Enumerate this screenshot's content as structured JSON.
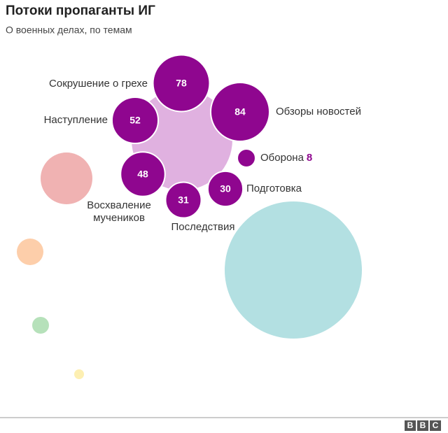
{
  "chart_data": {
    "type": "bubble",
    "title": "Потоки пропаганты ИГ",
    "subtitle": "О военных делах, по темам",
    "color": "#8f068f",
    "series": [
      {
        "name": "Сокрушение о грехе",
        "value": 78
      },
      {
        "name": "Обзоры новостей",
        "value": 84
      },
      {
        "name": "Наступление",
        "value": 52
      },
      {
        "name": "Оборона",
        "value": 8
      },
      {
        "name": "Восхваление мучеников",
        "value": 48
      },
      {
        "name": "Подготовка",
        "value": 30
      },
      {
        "name": "Последствия",
        "value": 31
      }
    ]
  },
  "footer": {
    "logo": [
      "B",
      "B",
      "C"
    ]
  }
}
